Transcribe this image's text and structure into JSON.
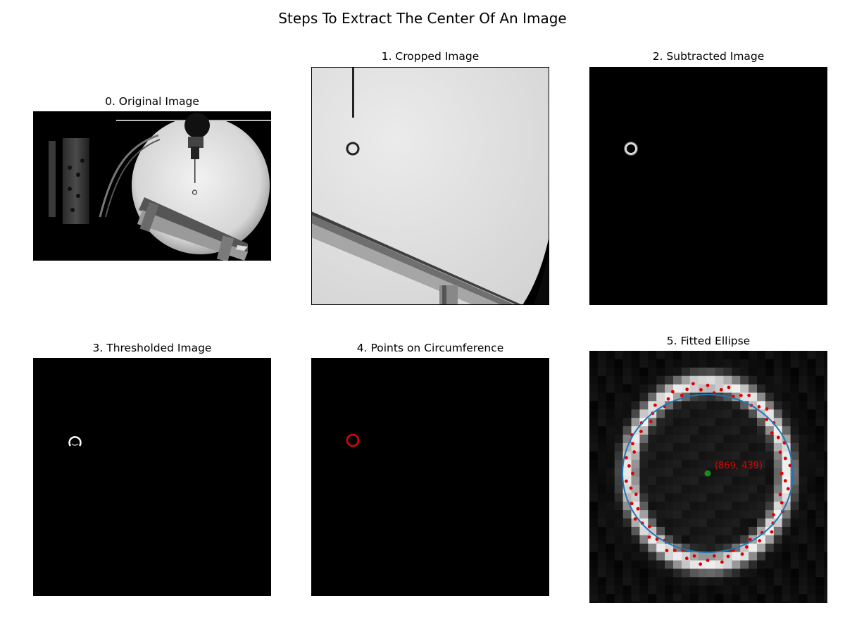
{
  "figure": {
    "title": "Steps To Extract The Center Of An Image"
  },
  "panels": [
    {
      "title": "0. Original Image"
    },
    {
      "title": "1. Cropped Image"
    },
    {
      "title": "2. Subtracted Image"
    },
    {
      "title": "3. Thresholded Image"
    },
    {
      "title": "4. Points on Circumference"
    },
    {
      "title": "5. Fitted Ellipse"
    }
  ],
  "center_label": "(869, 439)",
  "colors": {
    "points": "#e00000",
    "ellipse": "#1f77b4",
    "center": "#1a8c1a"
  }
}
